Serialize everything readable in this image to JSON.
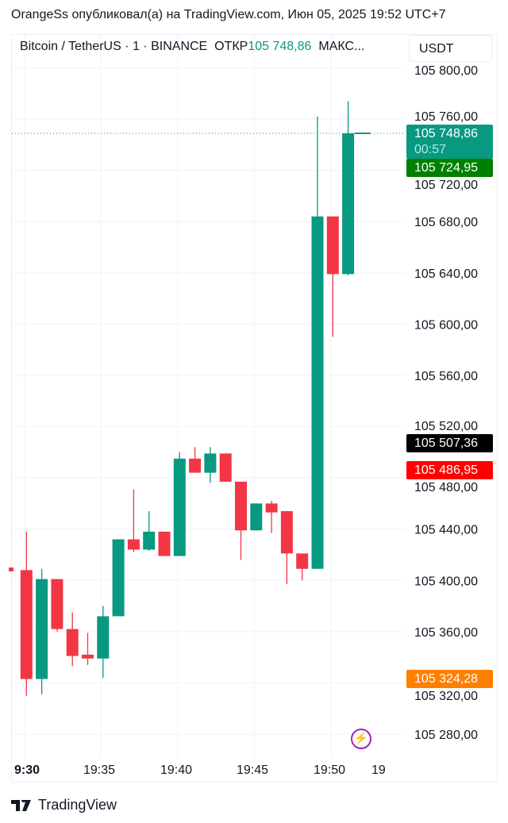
{
  "header": {
    "publish_line": "OrangeSs опубликовал(а) на TradingView.com, Июн 05, 2025 19:52 UTC+7"
  },
  "legend": {
    "symbol": "Bitcoin / TetherUS · 1 · BINANCE",
    "open_label": "ОТКР",
    "open_value": "105 748,86",
    "more": "МАКС..."
  },
  "currency_button": "USDT",
  "badges": {
    "last_price": "105 748,86",
    "countdown": "00:57",
    "bid": "105 724,95",
    "black": "105 507,36",
    "red": "105 486,95",
    "orange": "105 324,28"
  },
  "colors": {
    "up": "#089981",
    "down": "#f23645",
    "last_badge": "#089981",
    "bid_badge": "#008000",
    "black_badge": "#000000",
    "red_badge": "#ff0000",
    "orange_badge": "#ff8000",
    "alert_icon": "#9c27b0"
  },
  "footer": {
    "brand": "TradingView"
  },
  "alert_icon": "lightning-icon",
  "chart_data": {
    "type": "candlestick",
    "interval": "1 min",
    "y_ticks": [
      "105 800,00",
      "105 760,00",
      "105 720,00",
      "105 680,00",
      "105 640,00",
      "105 600,00",
      "105 560,00",
      "105 520,00",
      "105 480,00",
      "105 440,00",
      "105 400,00",
      "105 360,00",
      "105 320,00",
      "105 280,00"
    ],
    "y_tick_values": [
      105800,
      105760,
      105720,
      105680,
      105640,
      105600,
      105560,
      105520,
      105480,
      105440,
      105400,
      105360,
      105320,
      105280
    ],
    "x_ticks": [
      "9:30",
      "19:35",
      "19:40",
      "19:45",
      "19:50",
      "19"
    ],
    "last_price_line": 105748.86,
    "candles": [
      {
        "t": "19:29",
        "o": 105410,
        "h": 105410,
        "l": 105407,
        "c": 105407
      },
      {
        "t": "19:30",
        "o": 105408,
        "h": 105438,
        "l": 105310,
        "c": 105323
      },
      {
        "t": "19:31",
        "o": 105323,
        "h": 105409,
        "l": 105311,
        "c": 105401
      },
      {
        "t": "19:32",
        "o": 105401,
        "h": 105401,
        "l": 105360,
        "c": 105362
      },
      {
        "t": "19:33",
        "o": 105362,
        "h": 105375,
        "l": 105333,
        "c": 105341
      },
      {
        "t": "19:34",
        "o": 105342,
        "h": 105359,
        "l": 105334,
        "c": 105339
      },
      {
        "t": "19:35",
        "o": 105339,
        "h": 105380,
        "l": 105324,
        "c": 105372
      },
      {
        "t": "19:36",
        "o": 105372,
        "h": 105432,
        "l": 105372,
        "c": 105432
      },
      {
        "t": "19:37",
        "o": 105432,
        "h": 105471,
        "l": 105422,
        "c": 105424
      },
      {
        "t": "19:38",
        "o": 105424,
        "h": 105454,
        "l": 105423,
        "c": 105438
      },
      {
        "t": "19:39",
        "o": 105438,
        "h": 105438,
        "l": 105419,
        "c": 105419
      },
      {
        "t": "19:40",
        "o": 105419,
        "h": 105500,
        "l": 105419,
        "c": 105495
      },
      {
        "t": "19:41",
        "o": 105495,
        "h": 105504,
        "l": 105484,
        "c": 105484
      },
      {
        "t": "19:42",
        "o": 105484,
        "h": 105504,
        "l": 105476,
        "c": 105499
      },
      {
        "t": "19:43",
        "o": 105499,
        "h": 105499,
        "l": 105477,
        "c": 105477
      },
      {
        "t": "19:44",
        "o": 105477,
        "h": 105477,
        "l": 105416,
        "c": 105439
      },
      {
        "t": "19:45",
        "o": 105439,
        "h": 105460,
        "l": 105439,
        "c": 105460
      },
      {
        "t": "19:46",
        "o": 105460,
        "h": 105462,
        "l": 105437,
        "c": 105453
      },
      {
        "t": "19:47",
        "o": 105454,
        "h": 105454,
        "l": 105397,
        "c": 105421
      },
      {
        "t": "19:48",
        "o": 105421,
        "h": 105421,
        "l": 105400,
        "c": 105409
      },
      {
        "t": "19:49",
        "o": 105409,
        "h": 105762,
        "l": 105409,
        "c": 105684
      },
      {
        "t": "19:50",
        "o": 105684,
        "h": 105684,
        "l": 105590,
        "c": 105639
      },
      {
        "t": "19:51",
        "o": 105639,
        "h": 105774,
        "l": 105638,
        "c": 105748.86
      }
    ]
  }
}
